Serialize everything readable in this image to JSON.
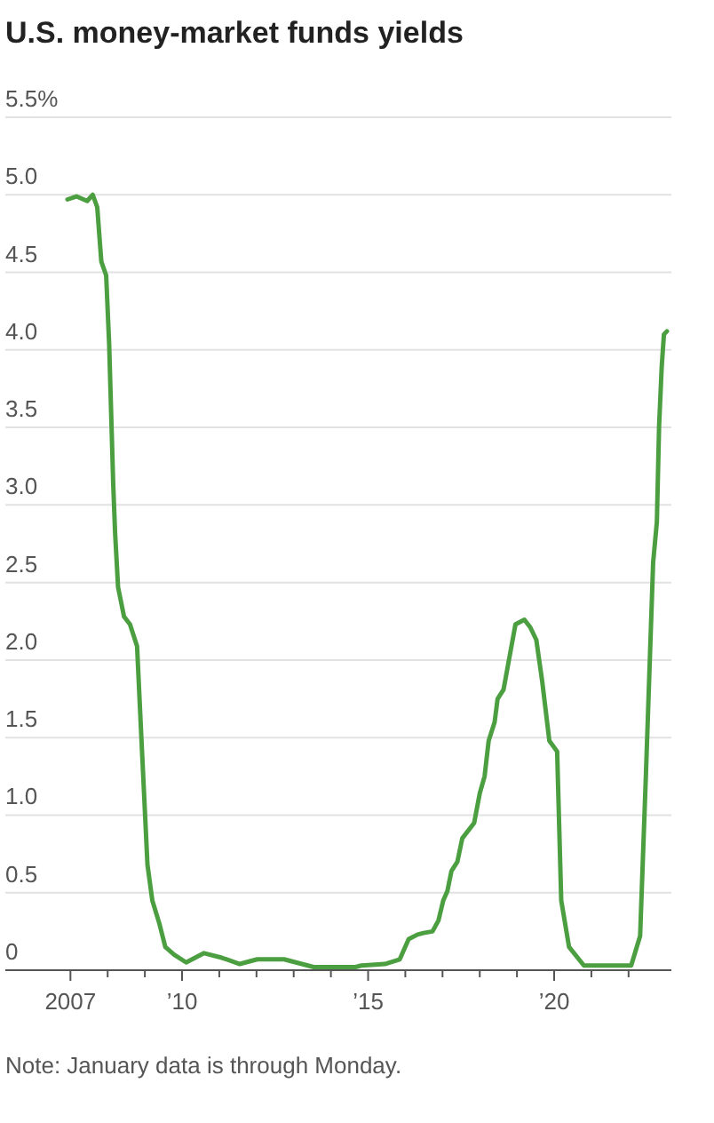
{
  "chart_data": {
    "type": "line",
    "title": "U.S. money-market funds yields",
    "annotations": [
      "Note: January data is through Monday."
    ],
    "series": [
      {
        "color": "#4c9f41",
        "x": [
          2006.92,
          2007.16,
          2007.45,
          2007.6,
          2007.72,
          2007.83,
          2007.96,
          2008.04,
          2008.15,
          2008.2,
          2008.28,
          2008.44,
          2008.6,
          2008.79,
          2008.91,
          2009.07,
          2009.2,
          2009.39,
          2009.55,
          2009.79,
          2010.11,
          2010.59,
          2011.07,
          2011.55,
          2012.02,
          2012.74,
          2013.54,
          2014.66,
          2014.82,
          2015.45,
          2015.85,
          2016.09,
          2016.33,
          2016.49,
          2016.73,
          2016.89,
          2017.02,
          2017.13,
          2017.24,
          2017.4,
          2017.53,
          2017.85,
          2018.0,
          2018.13,
          2018.24,
          2018.4,
          2018.48,
          2018.64,
          2018.8,
          2018.96,
          2019.2,
          2019.36,
          2019.52,
          2019.68,
          2019.87,
          2020.08,
          2020.19,
          2020.4,
          2020.8,
          2022.07,
          2022.31,
          2022.47,
          2022.66,
          2022.76,
          2022.82,
          2022.89,
          2022.95,
          2023.03
        ],
        "values": [
          4.97,
          4.99,
          4.96,
          5.0,
          4.92,
          4.57,
          4.48,
          4.04,
          3.13,
          2.82,
          2.47,
          2.28,
          2.23,
          2.09,
          1.48,
          0.68,
          0.45,
          0.3,
          0.15,
          0.1,
          0.05,
          0.11,
          0.08,
          0.04,
          0.07,
          0.07,
          0.02,
          0.02,
          0.03,
          0.04,
          0.07,
          0.2,
          0.23,
          0.24,
          0.25,
          0.32,
          0.45,
          0.51,
          0.64,
          0.7,
          0.85,
          0.95,
          1.14,
          1.25,
          1.48,
          1.6,
          1.75,
          1.81,
          2.02,
          2.23,
          2.26,
          2.21,
          2.13,
          1.86,
          1.48,
          1.41,
          0.45,
          0.15,
          0.03,
          0.03,
          0.22,
          1.29,
          2.63,
          2.89,
          3.51,
          3.89,
          4.1,
          4.12
        ]
      }
    ],
    "xlim": [
      2005.25,
      2023.15
    ],
    "xticks": [
      {
        "value": 2007,
        "label": "2007"
      },
      {
        "value": 2008,
        "label": null
      },
      {
        "value": 2009,
        "label": null
      },
      {
        "value": 2010,
        "label": "’10"
      },
      {
        "value": 2011,
        "label": null
      },
      {
        "value": 2012,
        "label": null
      },
      {
        "value": 2013,
        "label": null
      },
      {
        "value": 2014,
        "label": null
      },
      {
        "value": 2015,
        "label": "’15"
      },
      {
        "value": 2016,
        "label": null
      },
      {
        "value": 2017,
        "label": null
      },
      {
        "value": 2018,
        "label": null
      },
      {
        "value": 2019,
        "label": null
      },
      {
        "value": 2020,
        "label": "’20"
      },
      {
        "value": 2021,
        "label": null
      },
      {
        "value": 2022,
        "label": null
      }
    ],
    "ylim": [
      0,
      5.5
    ],
    "yticks": [
      0,
      0.5,
      {
        "value": 1,
        "label": "1.0"
      },
      1.5,
      {
        "value": 2,
        "label": "2.0"
      },
      2.5,
      {
        "value": 3,
        "label": "3.0"
      },
      3.5,
      {
        "value": 4,
        "label": "4.0"
      },
      4.5,
      {
        "value": 5,
        "label": "5.0"
      },
      {
        "value": 5.5,
        "label": "5.5%"
      }
    ],
    "grid": "y",
    "line_style": "solid",
    "marker": "none"
  }
}
